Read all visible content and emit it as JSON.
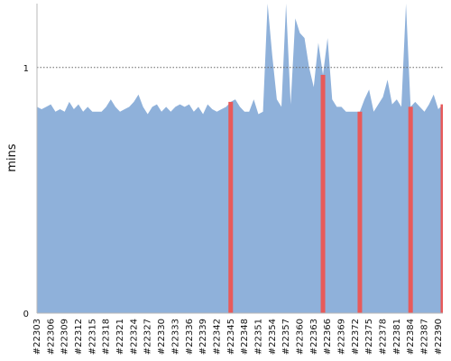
{
  "chart_data": {
    "type": "area",
    "title": "",
    "xlabel": "",
    "ylabel": "mins",
    "ylim": [
      0,
      1.26
    ],
    "y_ticks": [
      {
        "value": 0,
        "label": "0"
      },
      {
        "value": 1,
        "label": "1"
      }
    ],
    "reference_line": {
      "value": 1,
      "style": "dotted"
    },
    "grid": false,
    "legend": "none",
    "x_start": 22303,
    "x_end": 22391,
    "x_tick_labels": [
      "#22303",
      "#22306",
      "#22309",
      "#22312",
      "#22315",
      "#22318",
      "#22321",
      "#22324",
      "#22327",
      "#22330",
      "#22333",
      "#22336",
      "#22339",
      "#22342",
      "#22345",
      "#22348",
      "#22351",
      "#22354",
      "#22357",
      "#22360",
      "#22363",
      "#22366",
      "#22369",
      "#22372",
      "#22375",
      "#22378",
      "#22381",
      "#22384",
      "#22387",
      "#22390"
    ],
    "series": [
      {
        "color": "#8fb1da",
        "values": [
          0.84,
          0.83,
          0.84,
          0.85,
          0.82,
          0.83,
          0.82,
          0.86,
          0.83,
          0.85,
          0.82,
          0.84,
          0.82,
          0.82,
          0.82,
          0.84,
          0.87,
          0.84,
          0.82,
          0.83,
          0.84,
          0.86,
          0.89,
          0.84,
          0.81,
          0.84,
          0.85,
          0.82,
          0.84,
          0.82,
          0.84,
          0.85,
          0.84,
          0.85,
          0.82,
          0.84,
          0.81,
          0.85,
          0.83,
          0.82,
          0.83,
          0.84,
          0.86,
          0.87,
          0.84,
          0.82,
          0.82,
          0.87,
          0.81,
          0.82,
          1.26,
          1.05,
          0.87,
          0.84,
          1.26,
          0.85,
          1.2,
          1.14,
          1.12,
          1.0,
          0.92,
          1.1,
          0.97,
          1.12,
          0.87,
          0.84,
          0.84,
          0.82,
          0.82,
          0.82,
          0.82,
          0.87,
          0.91,
          0.82,
          0.85,
          0.88,
          0.95,
          0.85,
          0.87,
          0.84,
          1.26,
          0.84,
          0.86,
          0.84,
          0.82,
          0.85,
          0.89,
          0.83,
          0.85,
          0.84
        ]
      },
      {
        "color": "#e85a5a",
        "highlighted_builds": [
          22345,
          22365,
          22373,
          22384,
          22391
        ]
      }
    ]
  }
}
